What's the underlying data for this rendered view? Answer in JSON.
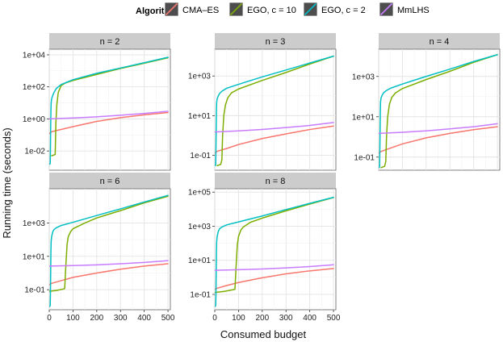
{
  "chart_data": {
    "type": "line",
    "layout": "faceted",
    "x_label": "Consumed budget",
    "y_label": "Running time (seconds)",
    "y_scale": "log10",
    "x_range": [
      0,
      510
    ],
    "x_ticks": [
      0,
      100,
      200,
      300,
      400,
      500
    ],
    "grid": true,
    "legend": {
      "title": "Algorithm",
      "position": "top",
      "entries": [
        {
          "name": "CMA–ES",
          "color": "#F8766D"
        },
        {
          "name": "EGO, c = 10",
          "color": "#7CAE00"
        },
        {
          "name": "EGO, c = 2",
          "color": "#00BFC4"
        },
        {
          "name": "MmLHS",
          "color": "#C77CFF"
        }
      ]
    },
    "panels": [
      {
        "label": "n = 2",
        "ylim_log10": [
          -3.2,
          4.35
        ],
        "y_ticks": [
          "1e-02",
          "1e+00",
          "1e+02",
          "1e+04"
        ],
        "series": [
          {
            "name": "CMA–ES",
            "x": [
              0,
              10,
              50,
              100,
              200,
              300,
              400,
              500
            ],
            "y": [
              0.12,
              0.16,
              0.22,
              0.33,
              0.7,
              1.2,
              1.8,
              2.5
            ]
          },
          {
            "name": "EGO, c = 10",
            "x": [
              10,
              25,
              25,
              28,
              32,
              38,
              50,
              70,
              100,
              200,
              300,
              400,
              500
            ],
            "y": [
              0.005,
              0.006,
              0.006,
              0.6,
              8,
              45,
              120,
              180,
              250,
              600,
              1400,
              3000,
              6500
            ]
          },
          {
            "name": "EGO, c = 2",
            "x": [
              2,
              4,
              5,
              6,
              7,
              8,
              10,
              15,
              20,
              30,
              50,
              100,
              200,
              300,
              400,
              500
            ],
            "y": [
              0.0015,
              0.0016,
              0.01,
              0.3,
              3,
              10,
              18,
              30,
              45,
              80,
              140,
              280,
              700,
              1500,
              3200,
              7000
            ]
          },
          {
            "name": "MmLHS",
            "x": [
              0,
              100,
              200,
              300,
              400,
              500
            ],
            "y": [
              1.0,
              1.15,
              1.35,
              1.7,
              2.2,
              3.0
            ]
          }
        ]
      },
      {
        "label": "n = 3",
        "ylim_log10": [
          -1.75,
          4.35
        ],
        "y_ticks": [
          "1e-01",
          "1e+01",
          "1e+03"
        ],
        "series": [
          {
            "name": "CMA–ES",
            "x": [
              0,
              10,
              50,
              100,
              200,
              300,
              400,
              500
            ],
            "y": [
              0.13,
              0.16,
              0.22,
              0.35,
              0.7,
              1.2,
              2.0,
              3.0
            ]
          },
          {
            "name": "EGO, c = 10",
            "x": [
              10,
              25,
              30,
              30,
              33,
              38,
              45,
              55,
              70,
              100,
              200,
              300,
              400,
              500
            ],
            "y": [
              0.03,
              0.035,
              0.06,
              0.06,
              1,
              10,
              35,
              80,
              140,
              220,
              600,
              1500,
              4000,
              10000
            ]
          },
          {
            "name": "EGO, c = 2",
            "x": [
              2,
              4,
              5,
              6,
              7,
              8,
              10,
              15,
              20,
              30,
              50,
              100,
              200,
              300,
              400,
              500
            ],
            "y": [
              0.03,
              0.035,
              0.2,
              2,
              15,
              45,
              70,
              100,
              130,
              170,
              240,
              380,
              900,
              2000,
              4500,
              10000
            ]
          },
          {
            "name": "MmLHS",
            "x": [
              0,
              100,
              200,
              300,
              400,
              500
            ],
            "y": [
              1.5,
              1.7,
              2.0,
              2.5,
              3.2,
              4.5
            ]
          }
        ]
      },
      {
        "label": "n = 4",
        "ylim_log10": [
          -1.65,
          4.35
        ],
        "y_ticks": [
          "1e-01",
          "1e+01",
          "1e+03"
        ],
        "series": [
          {
            "name": "CMA–ES",
            "x": [
              0,
              10,
              50,
              100,
              200,
              300,
              400,
              500
            ],
            "y": [
              0.16,
              0.19,
              0.28,
              0.45,
              0.9,
              1.5,
              2.3,
              3.2
            ]
          },
          {
            "name": "EGO, c = 10",
            "x": [
              10,
              25,
              30,
              30,
              33,
              38,
              45,
              55,
              70,
              100,
              200,
              300,
              400,
              500
            ],
            "y": [
              0.03,
              0.035,
              0.06,
              0.06,
              1,
              10,
              40,
              90,
              150,
              250,
              700,
              1800,
              5000,
              12000
            ]
          },
          {
            "name": "EGO, c = 2",
            "x": [
              2,
              4,
              5,
              6,
              7,
              8,
              10,
              15,
              20,
              30,
              50,
              100,
              200,
              300,
              400,
              500
            ],
            "y": [
              0.03,
              0.035,
              0.2,
              2,
              18,
              55,
              85,
              120,
              150,
              190,
              260,
              420,
              1000,
              2300,
              5500,
              12000
            ]
          },
          {
            "name": "MmLHS",
            "x": [
              0,
              100,
              200,
              300,
              400,
              500
            ],
            "y": [
              1.5,
              1.7,
              2.0,
              2.5,
              3.2,
              4.5
            ]
          }
        ]
      },
      {
        "label": "n = 6",
        "ylim_log10": [
          -2.2,
          5.05
        ],
        "y_ticks": [
          "1e-01",
          "1e+01",
          "1e+03"
        ],
        "series": [
          {
            "name": "CMA–ES",
            "x": [
              0,
              10,
              50,
              100,
              200,
              300,
              400,
              500
            ],
            "y": [
              0.2,
              0.24,
              0.35,
              0.55,
              1.0,
              1.7,
              2.6,
              3.6
            ]
          },
          {
            "name": "EGO, c = 10",
            "x": [
              0,
              30,
              60,
              65,
              65,
              70,
              75,
              80,
              90,
              100,
              150,
              200,
              300,
              400,
              500
            ],
            "y": [
              0.08,
              0.09,
              0.11,
              0.12,
              0.12,
              3,
              50,
              150,
              300,
              450,
              1000,
              2000,
              5500,
              16000,
              40000
            ]
          },
          {
            "name": "EGO, c = 2",
            "x": [
              2,
              4,
              5,
              6,
              7,
              8,
              10,
              15,
              20,
              30,
              50,
              100,
              200,
              300,
              400,
              500
            ],
            "y": [
              0.01,
              0.011,
              0.05,
              1,
              20,
              80,
              150,
              300,
              400,
              520,
              700,
              1100,
              2800,
              7000,
              18000,
              45000
            ]
          },
          {
            "name": "MmLHS",
            "x": [
              0,
              100,
              200,
              300,
              400,
              500
            ],
            "y": [
              2.6,
              2.8,
              3.1,
              3.6,
              4.3,
              5.5
            ]
          }
        ]
      },
      {
        "label": "n = 8",
        "ylim_log10": [
          -1.9,
          5.2
        ],
        "y_ticks": [
          "1e-01",
          "1e+01",
          "1e+03",
          "1e+05"
        ],
        "series": [
          {
            "name": "CMA–ES",
            "x": [
              0,
              10,
              50,
              100,
              200,
              300,
              400,
              500
            ],
            "y": [
              0.2,
              0.23,
              0.33,
              0.5,
              0.95,
              1.6,
              2.4,
              3.3
            ]
          },
          {
            "name": "EGO, c = 10",
            "x": [
              0,
              40,
              78,
              85,
              85,
              90,
              95,
              100,
              110,
              120,
              150,
              200,
              300,
              400,
              500
            ],
            "y": [
              0.13,
              0.15,
              0.19,
              0.2,
              0.2,
              5,
              80,
              250,
              600,
              900,
              1700,
              3000,
              8000,
              20000,
              48000
            ]
          },
          {
            "name": "EGO, c = 2",
            "x": [
              2,
              4,
              5,
              6,
              7,
              8,
              10,
              15,
              20,
              30,
              50,
              100,
              200,
              300,
              400,
              500
            ],
            "y": [
              0.02,
              0.022,
              0.08,
              1.5,
              30,
              120,
              250,
              500,
              700,
              900,
              1200,
              1800,
              4000,
              9500,
              22000,
              50000
            ]
          },
          {
            "name": "MmLHS",
            "x": [
              0,
              100,
              200,
              300,
              400,
              500
            ],
            "y": [
              2.6,
              2.8,
              3.1,
              3.6,
              4.3,
              5.5
            ]
          }
        ]
      }
    ]
  }
}
